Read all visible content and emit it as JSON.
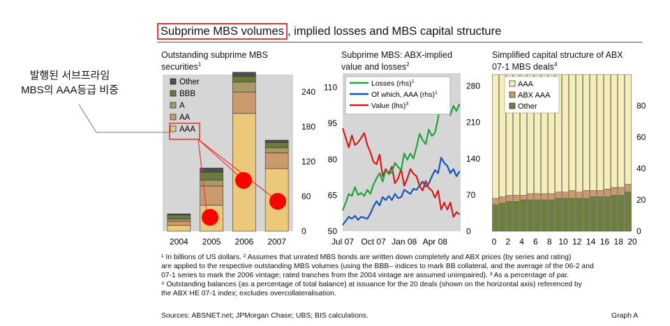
{
  "annotation": {
    "label_line1": "발행된 서브프라임",
    "label_line2": "MBS의 AAA등급 비중"
  },
  "title": {
    "boxed": "Subprime MBS volumes",
    "rest": ", implied losses and MBS capital structure"
  },
  "colors": {
    "panel_bg": "#d6d6d6",
    "Other": "#4f4f4f",
    "BBB": "#6a7a3a",
    "A": "#a89a66",
    "AA": "#c99a6a",
    "AAA": "#ecc97a",
    "losses": "#1fa33b",
    "aaa_line": "#1555b8",
    "value": "#d61a1a",
    "cap_aaa": "#f5eeb6",
    "cap_abx_aaa": "#c99a6a",
    "cap_other": "#6f7f3c",
    "highlight": "#e53935"
  },
  "chart_data": [
    {
      "type": "bar",
      "title_line1": "Outstanding subprime MBS",
      "title_line2": "securities",
      "title_sup": "1",
      "categories": [
        "2004",
        "2005",
        "2006",
        "2007"
      ],
      "stack_order": [
        "AAA",
        "AA",
        "A",
        "BBB",
        "Other"
      ],
      "series": [
        {
          "name": "AAA",
          "values": [
            10,
            45,
            203,
            108
          ]
        },
        {
          "name": "AA",
          "values": [
            7,
            33,
            37,
            27
          ]
        },
        {
          "name": "A",
          "values": [
            4,
            10,
            17,
            9
          ]
        },
        {
          "name": "BBB",
          "values": [
            7,
            14,
            10,
            9
          ]
        },
        {
          "name": "Other",
          "values": [
            2,
            7,
            7,
            4
          ]
        }
      ],
      "legend": [
        "Other",
        "BBB",
        "A",
        "AA",
        "AAA"
      ],
      "ylim": [
        0,
        270
      ],
      "yticks": [
        "0",
        "60",
        "120",
        "180",
        "240"
      ],
      "legend_position": "top-left"
    },
    {
      "type": "line",
      "title_line1": "Subprime MBS: ABX-implied",
      "title_line2": "value and losses",
      "title_sup": "2",
      "x_ticks": [
        "Jul 07",
        "Oct 07",
        "Jan 08",
        "Apr 08"
      ],
      "x_tick_positions": [
        0,
        3,
        6,
        9
      ],
      "xlim": [
        0,
        11.5
      ],
      "left_axis": {
        "ticks": [
          "50",
          "65",
          "80",
          "95",
          "110"
        ],
        "lim": [
          50,
          116
        ]
      },
      "right_axis": {
        "ticks": [
          "0",
          "70",
          "140",
          "210",
          "280"
        ],
        "lim": [
          0,
          305
        ]
      },
      "series": [
        {
          "name": "Losses (rhs)",
          "sup": "1",
          "axis": "right",
          "x": [
            0,
            0.3,
            0.6,
            0.9,
            1.2,
            1.5,
            1.8,
            2.1,
            2.4,
            2.7,
            3.0,
            3.3,
            3.6,
            3.9,
            4.2,
            4.5,
            4.8,
            5.1,
            5.4,
            5.7,
            6.0,
            6.3,
            6.6,
            6.9,
            7.2,
            7.5,
            7.8,
            8.1,
            8.4,
            8.7,
            9.0,
            9.3,
            9.6,
            9.9,
            10.2,
            10.5,
            10.8,
            11.1,
            11.4
          ],
          "y": [
            40,
            55,
            72,
            68,
            85,
            70,
            74,
            68,
            80,
            72,
            90,
            102,
            112,
            96,
            118,
            110,
            114,
            132,
            124,
            118,
            150,
            138,
            150,
            140,
            162,
            188,
            176,
            168,
            196,
            184,
            190,
            218,
            258,
            236,
            246,
            224,
            242,
            232,
            246
          ]
        },
        {
          "name": "Of which, AAA (rhs)",
          "sup": "1",
          "axis": "right",
          "x": [
            0,
            0.3,
            0.6,
            0.9,
            1.2,
            1.5,
            1.8,
            2.1,
            2.4,
            2.7,
            3.0,
            3.3,
            3.6,
            3.9,
            4.2,
            4.5,
            4.8,
            5.1,
            5.4,
            5.7,
            6.0,
            6.3,
            6.6,
            6.9,
            7.2,
            7.5,
            7.8,
            8.1,
            8.4,
            8.7,
            9.0,
            9.3,
            9.6,
            9.9,
            10.2,
            10.5,
            10.8,
            11.1,
            11.4
          ],
          "y": [
            12,
            20,
            28,
            24,
            30,
            22,
            28,
            26,
            24,
            34,
            48,
            58,
            50,
            66,
            60,
            68,
            60,
            72,
            64,
            66,
            80,
            76,
            72,
            82,
            80,
            88,
            96,
            86,
            92,
            106,
            118,
            112,
            142,
            132,
            126,
            112,
            120,
            106,
            116
          ]
        },
        {
          "name": "Value (lhs)",
          "sup": "3",
          "axis": "left",
          "x": [
            0,
            0.3,
            0.6,
            0.9,
            1.2,
            1.5,
            1.8,
            2.1,
            2.4,
            2.7,
            3.0,
            3.3,
            3.6,
            3.9,
            4.2,
            4.5,
            4.8,
            5.1,
            5.4,
            5.7,
            6.0,
            6.3,
            6.6,
            6.9,
            7.2,
            7.5,
            7.8,
            8.1,
            8.4,
            8.7,
            9.0,
            9.3,
            9.6,
            9.9,
            10.2,
            10.5,
            10.8,
            11.1,
            11.4
          ],
          "y": [
            93,
            89,
            85,
            90,
            86,
            87,
            89,
            91,
            86,
            83,
            79,
            78,
            82,
            73,
            76,
            74,
            77,
            70,
            72,
            76,
            69,
            72,
            76,
            74,
            73,
            69,
            67,
            71,
            68,
            67,
            64,
            67,
            59,
            62,
            59,
            62,
            56,
            58,
            57
          ]
        }
      ]
    },
    {
      "type": "bar",
      "title_line1": "Simplified capital structure of ABX",
      "title_line2": "07-1 MBS deals",
      "title_sup": "4",
      "categories": [
        "1",
        "2",
        "3",
        "4",
        "5",
        "6",
        "7",
        "8",
        "9",
        "10",
        "11",
        "12",
        "13",
        "14",
        "15",
        "16",
        "17",
        "18",
        "19",
        "20"
      ],
      "x_tick_labels": [
        "0",
        "2",
        "4",
        "6",
        "8",
        "10",
        "12",
        "14",
        "16",
        "18",
        "20"
      ],
      "stack_order": [
        "Other",
        "ABX AAA",
        "AAA"
      ],
      "series": [
        {
          "name": "Other",
          "values": [
            17,
            18,
            19,
            19,
            20,
            20,
            20,
            20,
            20,
            21,
            21,
            21,
            21,
            21,
            22,
            22,
            22,
            23,
            23,
            25
          ]
        },
        {
          "name": "ABX AAA",
          "values": [
            4,
            4,
            4,
            4,
            3,
            4,
            4,
            4,
            4,
            4,
            4,
            5,
            4,
            5,
            4,
            4,
            5,
            5,
            5,
            5
          ]
        },
        {
          "name": "AAA",
          "values": [
            79,
            78,
            77,
            77,
            77,
            76,
            76,
            76,
            76,
            75,
            75,
            74,
            75,
            74,
            74,
            74,
            73,
            72,
            72,
            70
          ]
        }
      ],
      "legend": [
        "AAA",
        "ABX AAA",
        "Other"
      ],
      "ylim": [
        0,
        100
      ],
      "yticks": [
        "0",
        "20",
        "40",
        "60",
        "80"
      ],
      "legend_position": "top-left"
    }
  ],
  "footnotes": {
    "line1": "¹ In billions of US dollars.  ² Assumes that unrated MBS bonds are written down completely and ABX prices (by series and rating)",
    "line2": "are applied to the respective outstanding MBS volumes (using the BBB– indices to mark BB collateral, and the average of the 06-2 and",
    "line3": "07-1 series to mark the 2006 vintage; rated tranches from the 2004 vintage are assumed unimpaired).  ³ As a percentage of par.",
    "line4": "⁴ Outstanding balances (as a percentage of total balance) at issuance for the 20 deals (shown on the horizontal axis) referenced by",
    "line5": "the ABX HE 07-1 index; excludes overcollateralisation."
  },
  "sources": "Sources: ABSNET.net; JPMorgan Chase; UBS; BIS calculations.",
  "graph_label": "Graph A"
}
